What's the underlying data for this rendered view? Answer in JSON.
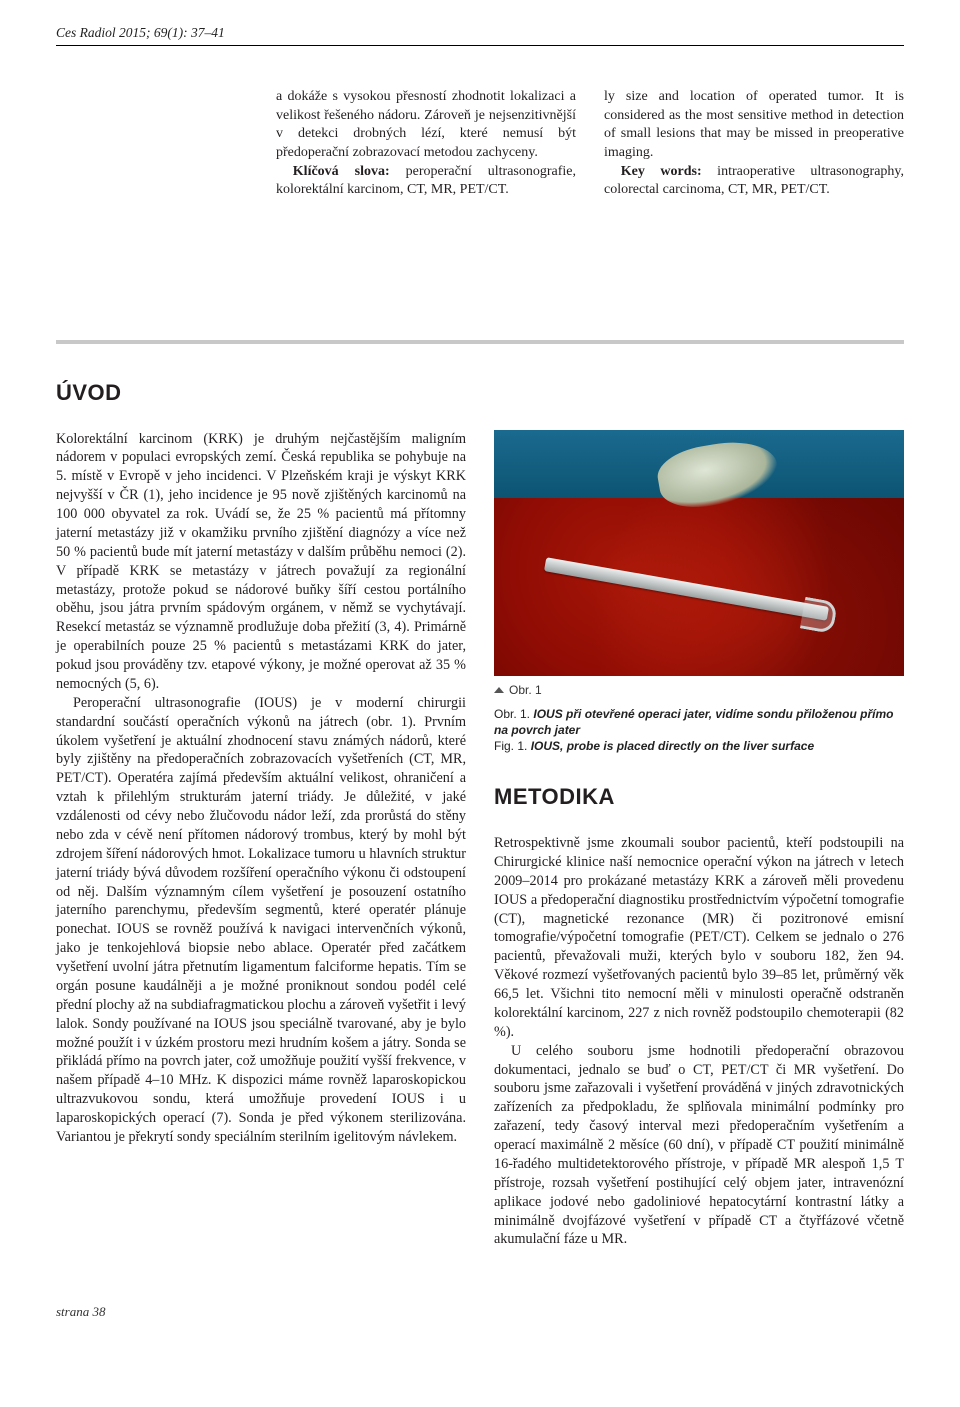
{
  "running_head": "Ces Radiol 2015; 69(1): 37–41",
  "abstract": {
    "cz": {
      "text": "a dokáže s vysokou přesností zhodnotit lokalizaci a velikost řešeného nádoru. Zároveň je nejsenzitivnější v detekci drobných lézí, které nemusí být předoperační zobrazovací metodou zachyceny.",
      "kw_label": "Klíčová slova:",
      "kw": " peroperační ultrasonografie, kolorektální karcinom, CT, MR, PET/CT."
    },
    "en": {
      "text": "ly size and location of operated tumor. It is considered as the most sensitive method in detection of small lesions that may be missed in preoperative imaging.",
      "kw_label": "Key words:",
      "kw": " intraoperative ultrasonography, colorectal carcinoma, CT, MR, PET/CT."
    }
  },
  "sections": {
    "uvod": "ÚVOD",
    "metodika": "METODIKA"
  },
  "body": {
    "uvod_p1": "Kolorektální karcinom (KRK) je druhým nejčastějším maligním nádorem v populaci evropských zemí. Česká republika se pohybuje na 5. místě v Evropě v jeho incidenci. V Plzeňském kraji je výskyt KRK nejvyšší v ČR (1), jeho incidence je 95 nově zjištěných karcinomů na 100 000 obyvatel za rok. Uvádí se, že 25 % pacientů má přítomny jaterní metastázy již v okamžiku prvního zjištění diagnózy a více než 50 % pacientů bude mít jaterní metastázy v dalším průběhu nemoci (2). V případě KRK se metastázy v játrech považují za regionální metastázy, protože pokud se nádorové buňky šíří cestou portálního oběhu, jsou játra prvním spádovým orgánem, v němž se vychytávají. Resekcí metastáz se významně prodlužuje doba přežití (3, 4). Primárně je operabilních pouze 25 % pacientů s metastázami KRK do jater, pokud jsou prováděny tzv. etapové výkony, je možné operovat až 35 % nemocných (5, 6).",
    "uvod_p2": "Peroperační ultrasonografie (IOUS) je v moderní chirurgii standardní součástí operačních výkonů na játrech (obr. 1). Prvním úkolem vyšetření je aktuální zhodnocení stavu známých nádorů, které byly zjištěny na předoperačních zobrazovacích vyšetřeních (CT, MR, PET/CT). Operatéra zajímá především aktuální velikost, ohraničení a vztah k přilehlým strukturám jaterní triády. Je důležité, v jaké vzdálenosti od cévy nebo žlučovodu nádor leží, zda prorůstá do stěny nebo zda v cévě není přítomen nádorový trombus, který by  mohl být zdrojem šíření nádorových hmot. Lokalizace tumoru u hlavních struktur jaterní triády bývá důvodem rozšíření operačního výkonu či odstoupení od něj. Dalším významným cílem vyšetření je posouzení ostatního jaterního parenchymu, především segmentů, které operatér plánuje ponechat. IOUS se rovněž používá k navigaci intervenčních výkonů, jako je tenkojehlová biopsie nebo ablace. Operatér před začátkem vyšetření uvolní játra přetnutím ligamentum falciforme hepatis. Tím se orgán posune kaudálněji a je možné proniknout sondou podél celé přední plochy až na subdiafragmatickou plochu a zároveň vyšetřit i levý lalok. Sondy používané na IOUS jsou speciálně tvarované, aby je bylo možné použít i v úzkém prostoru mezi hrudním košem a játry. Sonda se přikládá přímo na povrch jater, což umožňuje použití vyšší frekvence, v našem případě 4–10 MHz. K dispozici máme rovněž laparoskopickou ultrazvukovou sondu, která umožňuje provedení IOUS i u laparoskopických operací (7). Sonda je před výkonem sterilizována. Variantou je překrytí sondy speciálním sterilním igelitovým návlekem.",
    "metodika_p1": "Retrospektivně jsme zkoumali soubor pacientů, kteří podstoupili na Chirurgické klinice naší nemocnice operační výkon na játrech v letech 2009–2014 pro prokázané metastázy KRK a zároveň měli provedenu IOUS a předoperační diagnostiku prostřednictvím výpočetní tomografie (CT), magnetické rezonance (MR) či pozitronové emisní tomografie/výpočetní tomografie (PET/CT). Celkem se jednalo o 276 pacientů, převažovali muži, kterých bylo v souboru 182, žen 94. Věkové rozmezí vyšetřovaných pacientů bylo 39–85 let, průměrný věk 66,5 let. Všichni tito nemocní měli v minulosti operačně odstraněn kolorektální karcinom, 227 z nich rovněž podstoupilo chemoterapii (82 %).",
    "metodika_p2": "U celého souboru jsme hodnotili předoperační obrazovou dokumentaci, jednalo se buď o CT, PET/CT či MR vyšetření. Do souboru jsme zařazovali i vyšetření prováděná v jiných zdravotnických zařízeních za předpokladu, že splňovala minimální podmínky pro zařazení, tedy časový interval mezi předoperačním vyšetřením a operací maximálně 2 měsíce (60 dní), v případě CT použití minimálně 16-řadého multidetektorového přístroje, v případě MR alespoň 1,5 T přístroje, rozsah vyšetření postihující celý objem jater, intravenózní aplikace jodové nebo gadoliniové hepatocytární kontrastní látky a minimálně dvojfázové vyšetření v případě CT a čtyřfázové včetně akumulační fáze u MR."
  },
  "figure": {
    "short": "Obr. 1",
    "cz_label": "Obr. 1.",
    "cz_bold": " IOUS při otevřené operaci jater, vidíme sondu přiloženou přímo na povrch jater",
    "en_label": "Fig. 1.",
    "en_bold": " IOUS, probe is placed directly on the liver surface"
  },
  "footer": "strana 38"
}
